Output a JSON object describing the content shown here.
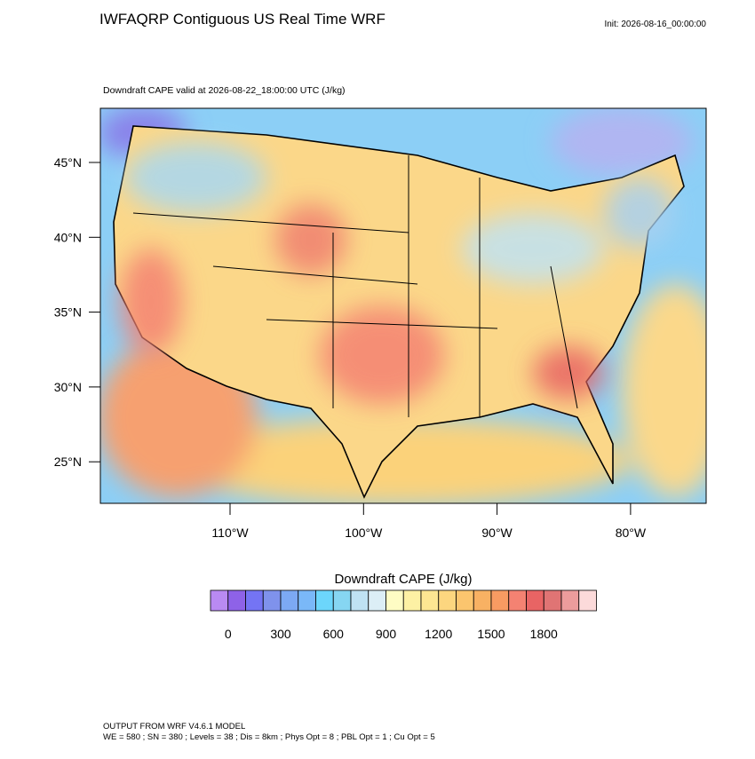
{
  "header": {
    "title": "IWFAQRP Contiguous US Real Time WRF",
    "init": "Init: 2026-08-16_00:00:00"
  },
  "map": {
    "subtitle": "Downdraft CAPE valid at 2026-08-22_18:00:00 UTC   (J/kg)",
    "lat_labels": [
      "45°N",
      "40°N",
      "35°N",
      "30°N",
      "25°N"
    ],
    "lon_labels": [
      "110°W",
      "100°W",
      "90°W",
      "80°W"
    ]
  },
  "colorbar": {
    "title": "Downdraft CAPE  (J/kg)",
    "labels": [
      "0",
      "300",
      "600",
      "900",
      "1200",
      "1500",
      "1800"
    ],
    "colors": [
      "#b98af2",
      "#8e62e8",
      "#7474f4",
      "#7f92ec",
      "#7ca9f4",
      "#7ab8f8",
      "#6cd6fb",
      "#86d6f2",
      "#bfe2f3",
      "#dceef6",
      "#fefcc4",
      "#fdf1a4",
      "#fde692",
      "#fcd67f",
      "#fbc56e",
      "#f8b163",
      "#f89b62",
      "#f48272",
      "#e86464",
      "#e07474",
      "#ec9c9c",
      "#fcdada"
    ]
  },
  "footer": {
    "line1": "OUTPUT FROM WRF V4.6.1 MODEL",
    "line2": "WE = 580 ; SN = 380 ; Levels = 38 ; Dis = 8km ; Phys Opt = 8 ; PBL Opt = 1 ; Cu Opt = 5"
  }
}
